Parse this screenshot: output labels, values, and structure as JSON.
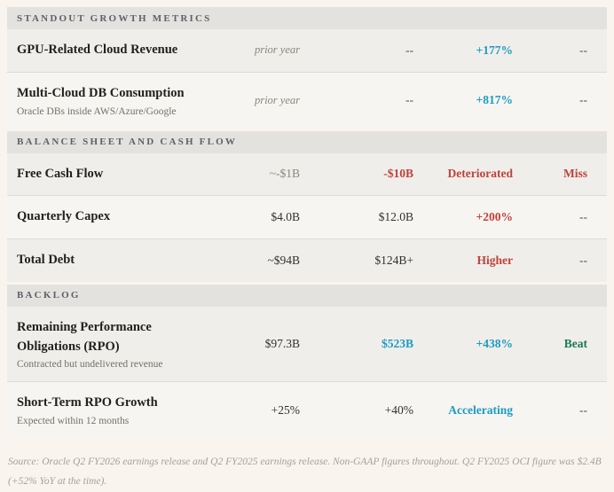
{
  "palette": {
    "page_background": "#f9f5ee",
    "section_header_background": "#e4e2de",
    "row_shaded_background": "#f0eeea",
    "row_plain_background": "#f7f5f1",
    "divider": "#dedbd6",
    "positive_teal": "#1b9cc2",
    "negative_red": "#c0423c",
    "beat_green": "#177a55",
    "muted_text": "#8a867e"
  },
  "sections": [
    {
      "title": "STANDOUT GROWTH METRICS",
      "rows": [
        {
          "metric": "GPU-Related Cloud Revenue",
          "subtitle": "",
          "values": [
            {
              "text": "prior year",
              "tone": "muted-italic"
            },
            {
              "text": "--",
              "tone": "dash"
            },
            {
              "text": "+177%",
              "tone": "teal"
            },
            {
              "text": "--",
              "tone": "dash"
            }
          ]
        },
        {
          "metric": "Multi-Cloud DB Consumption",
          "subtitle": "Oracle DBs inside AWS/Azure/Google",
          "values": [
            {
              "text": "prior year",
              "tone": "muted-italic"
            },
            {
              "text": "--",
              "tone": "dash"
            },
            {
              "text": "+817%",
              "tone": "teal"
            },
            {
              "text": "--",
              "tone": "dash"
            }
          ]
        }
      ]
    },
    {
      "title": "BALANCE SHEET AND CASH FLOW",
      "rows": [
        {
          "metric": "Free Cash Flow",
          "subtitle": "",
          "values": [
            {
              "text": "~-$1B",
              "tone": "muted"
            },
            {
              "text": "-$10B",
              "tone": "red"
            },
            {
              "text": "Deteriorated",
              "tone": "red"
            },
            {
              "text": "Miss",
              "tone": "red"
            }
          ]
        },
        {
          "metric": "Quarterly Capex",
          "subtitle": "",
          "values": [
            {
              "text": "$4.0B",
              "tone": "dark"
            },
            {
              "text": "$12.0B",
              "tone": "dark"
            },
            {
              "text": "+200%",
              "tone": "red"
            },
            {
              "text": "--",
              "tone": "dash"
            }
          ]
        },
        {
          "metric": "Total Debt",
          "subtitle": "",
          "values": [
            {
              "text": "~$94B",
              "tone": "dark"
            },
            {
              "text": "$124B+",
              "tone": "dark"
            },
            {
              "text": "Higher",
              "tone": "red"
            },
            {
              "text": "--",
              "tone": "dash"
            }
          ]
        }
      ]
    },
    {
      "title": "BACKLOG",
      "rows": [
        {
          "metric": "Remaining Performance Obligations (RPO)",
          "subtitle": "Contracted but undelivered revenue",
          "values": [
            {
              "text": "$97.3B",
              "tone": "dark"
            },
            {
              "text": "$523B",
              "tone": "teal"
            },
            {
              "text": "+438%",
              "tone": "teal"
            },
            {
              "text": "Beat",
              "tone": "green"
            }
          ]
        },
        {
          "metric": "Short-Term RPO Growth",
          "subtitle": "Expected within 12 months",
          "values": [
            {
              "text": "+25%",
              "tone": "dark"
            },
            {
              "text": "+40%",
              "tone": "dark"
            },
            {
              "text": "Accelerating",
              "tone": "teal"
            },
            {
              "text": "--",
              "tone": "dash"
            }
          ]
        }
      ]
    }
  ],
  "footer": {
    "source_note": "Source: Oracle Q2 FY2026 earnings release and Q2 FY2025 earnings release. Non-GAAP figures throughout. Q2 FY2025 OCI figure was $2.4B (+52% YoY at the time)."
  }
}
